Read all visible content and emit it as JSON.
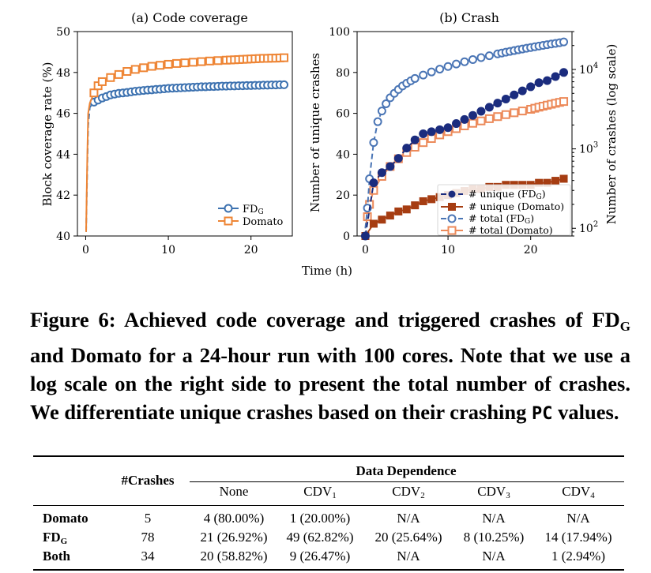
{
  "figure": {
    "panels": [
      {
        "title": "(a) Code coverage",
        "ylabel": "Block coverage rate (%)",
        "yticks": [
          "40",
          "42",
          "44",
          "46",
          "48",
          "50"
        ],
        "xticks": [
          "0",
          "10",
          "20"
        ],
        "legend": [
          {
            "label": "FD",
            "sub": "G"
          },
          {
            "label": "Domato",
            "sub": ""
          }
        ]
      },
      {
        "title": "(b) Crash",
        "ylabel": "Number of unique crashes",
        "ylabel_right": "Number of crashes (log scale)",
        "yticks": [
          "0",
          "20",
          "40",
          "60",
          "80",
          "100"
        ],
        "xticks": [
          "0",
          "10",
          "20"
        ],
        "right_ticks": [
          {
            "base": "10",
            "exp": "2"
          },
          {
            "base": "10",
            "exp": "3"
          },
          {
            "base": "10",
            "exp": "4"
          }
        ],
        "legend": [
          {
            "label": "# unique (FD",
            "sub": "G",
            "tail": ")"
          },
          {
            "label": "# unique (Domato)",
            "sub": "",
            "tail": ""
          },
          {
            "label": "# total (FD",
            "sub": "G",
            "tail": ")"
          },
          {
            "label": "# total (Domato)",
            "sub": "",
            "tail": ""
          }
        ]
      }
    ],
    "xlabel": "Time (h)"
  },
  "chart_data": [
    {
      "type": "line",
      "title": "(a) Code coverage",
      "xlabel": "Time (h)",
      "ylabel": "Block coverage rate (%)",
      "xlim": [
        -1,
        25
      ],
      "ylim": [
        40,
        50
      ],
      "colors": {
        "FDG": "#3d72b0",
        "Domato": "#ee8535"
      },
      "series": [
        {
          "name": "FDG",
          "x": [
            0.05,
            0.1,
            0.2,
            0.3,
            0.5,
            1,
            1.5,
            2,
            2.5,
            3,
            3.5,
            4,
            4.5,
            5,
            5.5,
            6,
            6.5,
            7,
            7.5,
            8,
            8.5,
            9,
            9.5,
            10,
            10.5,
            11,
            11.5,
            12,
            12.5,
            13,
            13.5,
            14,
            14.5,
            15,
            15.5,
            16,
            16.5,
            17,
            17.5,
            18,
            18.5,
            19,
            19.5,
            20,
            20.5,
            21,
            21.5,
            22,
            22.5,
            23,
            23.5,
            24
          ],
          "y": [
            40.2,
            41.3,
            43.5,
            45.4,
            46.3,
            46.55,
            46.65,
            46.75,
            46.82,
            46.9,
            46.94,
            46.98,
            47.0,
            47.02,
            47.05,
            47.08,
            47.1,
            47.12,
            47.14,
            47.15,
            47.17,
            47.18,
            47.2,
            47.22,
            47.23,
            47.24,
            47.25,
            47.26,
            47.27,
            47.28,
            47.29,
            47.3,
            47.3,
            47.31,
            47.31,
            47.32,
            47.33,
            47.33,
            47.34,
            47.34,
            47.35,
            47.35,
            47.36,
            47.36,
            47.37,
            47.37,
            47.38,
            47.38,
            47.39,
            47.39,
            47.4,
            47.4
          ]
        },
        {
          "name": "Domato",
          "x": [
            0.05,
            0.1,
            0.2,
            0.3,
            0.5,
            1,
            1.5,
            2,
            3,
            4,
            5,
            6,
            7,
            8,
            9,
            10,
            11,
            12,
            13,
            14,
            15,
            16,
            17,
            17.5,
            18,
            18.5,
            19,
            19.5,
            20,
            20.5,
            21,
            21.5,
            22,
            22.5,
            23,
            23.5,
            24
          ],
          "y": [
            40.2,
            41.5,
            44.0,
            46.0,
            46.5,
            47.0,
            47.35,
            47.55,
            47.75,
            47.9,
            48.05,
            48.15,
            48.23,
            48.3,
            48.35,
            48.4,
            48.44,
            48.47,
            48.5,
            48.53,
            48.56,
            48.58,
            48.6,
            48.61,
            48.62,
            48.63,
            48.64,
            48.65,
            48.66,
            48.67,
            48.68,
            48.69,
            48.69,
            48.7,
            48.7,
            48.71,
            48.72
          ]
        }
      ]
    },
    {
      "type": "line",
      "title": "(b) Crash",
      "xlabel": "Time (h)",
      "ylabel": "Number of unique crashes",
      "ylabel_right": "Number of crashes (log scale)",
      "xlim": [
        -1,
        25
      ],
      "ylim": [
        0,
        100
      ],
      "ylim_right": [
        80,
        30000
      ],
      "right_scale": "log",
      "colors": {
        "unique_FDG": "#1b2c7e",
        "unique_Domato": "#a63d12",
        "total_FDG": "#4a75b5",
        "total_Domato": "#ec8a5a"
      },
      "series": [
        {
          "name": "# unique (FDG)",
          "axis": "left",
          "x": [
            0,
            1,
            2,
            3,
            4,
            5,
            6,
            7,
            8,
            9,
            10,
            11,
            12,
            13,
            14,
            15,
            16,
            17,
            18,
            19,
            20,
            21,
            22,
            23,
            24
          ],
          "y": [
            0,
            26,
            31,
            34,
            38,
            43,
            47,
            50,
            51,
            52,
            53,
            55,
            57,
            59,
            61,
            63,
            65,
            67,
            69,
            71,
            73,
            75,
            76,
            78,
            80
          ]
        },
        {
          "name": "# unique (Domato)",
          "axis": "left",
          "x": [
            0,
            1,
            2,
            3,
            4,
            5,
            6,
            7,
            8,
            9,
            10,
            11,
            12,
            13,
            14,
            15,
            16,
            17,
            18,
            19,
            20,
            21,
            22,
            23,
            24
          ],
          "y": [
            0,
            6,
            8,
            10,
            12,
            13,
            15,
            17,
            18,
            19,
            20,
            21,
            22,
            23,
            23,
            24,
            24,
            25,
            25,
            25,
            25,
            26,
            26,
            27,
            28
          ]
        },
        {
          "name": "# total (FDG)",
          "axis": "right",
          "x": [
            0,
            0.25,
            0.5,
            1,
            1.5,
            2,
            2.5,
            3,
            3.5,
            4,
            4.5,
            5,
            5.5,
            6,
            7,
            8,
            9,
            10,
            11,
            12,
            13,
            14,
            15,
            16,
            16.5,
            17,
            17.5,
            18,
            18.5,
            19,
            19.5,
            20,
            20.5,
            21,
            21.5,
            22,
            22.5,
            23,
            23.5,
            24
          ],
          "y": [
            100,
            180,
            420,
            1200,
            2200,
            3000,
            3700,
            4400,
            5000,
            5600,
            6200,
            6700,
            7200,
            7700,
            8500,
            9300,
            10100,
            10900,
            11700,
            12500,
            13300,
            14100,
            14900,
            15700,
            16100,
            16500,
            16900,
            17300,
            17700,
            18100,
            18500,
            18900,
            19300,
            19700,
            20100,
            20500,
            20900,
            21300,
            21700,
            22200
          ]
        },
        {
          "name": "# total (Domato)",
          "axis": "right",
          "x": [
            0,
            0.25,
            0.5,
            1,
            2,
            3,
            4,
            5,
            6,
            7,
            8,
            9,
            10,
            11,
            12,
            13,
            14,
            15,
            16,
            17,
            18,
            19,
            20,
            20.5,
            21,
            21.5,
            22,
            22.5,
            23,
            23.5,
            24
          ],
          "y": [
            100,
            140,
            200,
            300,
            450,
            600,
            750,
            900,
            1050,
            1200,
            1350,
            1500,
            1650,
            1800,
            1950,
            2100,
            2250,
            2400,
            2550,
            2700,
            2850,
            3000,
            3150,
            3250,
            3350,
            3450,
            3550,
            3650,
            3750,
            3850,
            3950
          ]
        }
      ]
    }
  ],
  "caption": {
    "part1": "Figure 6: Achieved code coverage and triggered crashes of FD",
    "sub": "G",
    "part2": " and Domato for a 24-hour run with 100 cores. Note that we use a log scale on the right side to present the total number of crashes. We differentiate unique crashes based on their crashing ",
    "code": "PC",
    "part3": " values."
  },
  "table": {
    "col_crashes": "#Crashes",
    "group_header": "Data Dependence",
    "col_none": "None",
    "cdv": [
      {
        "base": "CDV",
        "sub": "1"
      },
      {
        "base": "CDV",
        "sub": "2"
      },
      {
        "base": "CDV",
        "sub": "3"
      },
      {
        "base": "CDV",
        "sub": "4"
      }
    ],
    "rows": [
      {
        "name": "Domato",
        "name_sub": "",
        "crashes": "5",
        "none": "4 (80.00%)",
        "cdv1": "1 (20.00%)",
        "cdv2": "N/A",
        "cdv3": "N/A",
        "cdv4": "N/A"
      },
      {
        "name": "FD",
        "name_sub": "G",
        "crashes": "78",
        "none": "21 (26.92%)",
        "cdv1": "49 (62.82%)",
        "cdv2": "20 (25.64%)",
        "cdv3": "8 (10.25%)",
        "cdv4": "14 (17.94%)"
      },
      {
        "name": "Both",
        "name_sub": "",
        "crashes": "34",
        "none": "20 (58.82%)",
        "cdv1": "9 (26.47%)",
        "cdv2": "N/A",
        "cdv3": "N/A",
        "cdv4": "1 (2.94%)"
      }
    ]
  }
}
